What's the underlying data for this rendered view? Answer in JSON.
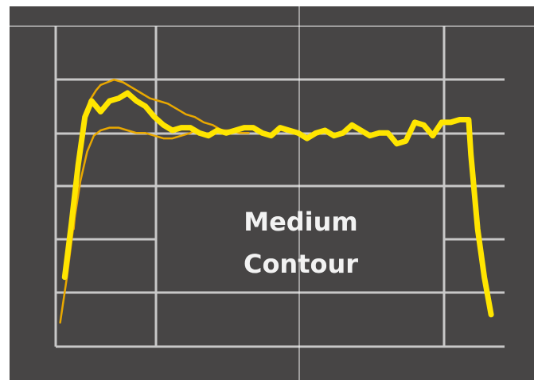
{
  "chart_data": {
    "type": "line",
    "title": "",
    "xlabel": "",
    "ylabel": "",
    "xlim": [
      0,
      10
    ],
    "ylim": [
      0,
      6
    ],
    "grid": true,
    "legend": "none",
    "annotations": [
      "Medium",
      "Contour"
    ],
    "colors": {
      "background": "#474545",
      "grid": "#c8c8c8",
      "divider": "#f5f5f5",
      "main": "#ffe500",
      "envelope": "#e9a800"
    },
    "series": [
      {
        "style": "thick",
        "x": [
          0.2,
          0.35,
          0.5,
          0.65,
          0.8,
          1.0,
          1.2,
          1.4,
          1.6,
          1.8,
          2.0,
          2.2,
          2.4,
          2.6,
          2.8,
          3.0,
          3.2,
          3.4,
          3.6,
          3.8,
          4.0,
          4.2,
          4.4,
          4.6,
          4.8,
          5.0,
          5.2,
          5.4,
          5.6,
          5.8,
          6.0,
          6.2,
          6.4,
          6.6,
          6.8,
          7.0,
          7.2,
          7.4,
          7.6,
          7.8,
          8.0,
          8.2,
          8.4,
          8.6,
          8.8,
          9.0,
          9.2,
          9.25,
          9.4,
          9.55,
          9.7
        ],
        "y": [
          1.3,
          2.3,
          3.4,
          4.3,
          4.6,
          4.4,
          4.6,
          4.65,
          4.75,
          4.6,
          4.5,
          4.3,
          4.15,
          4.05,
          4.1,
          4.1,
          4.0,
          3.95,
          4.05,
          4.0,
          4.05,
          4.1,
          4.1,
          4.0,
          3.95,
          4.1,
          4.05,
          4.0,
          3.9,
          4.0,
          4.05,
          3.95,
          4.0,
          4.15,
          4.05,
          3.95,
          4.0,
          4.0,
          3.8,
          3.85,
          4.2,
          4.15,
          3.95,
          4.2,
          4.2,
          4.25,
          4.25,
          3.6,
          2.2,
          1.3,
          0.6
        ]
      },
      {
        "style": "thin-upper",
        "x": [
          0.4,
          0.5,
          0.6,
          0.75,
          0.9,
          1.0,
          1.15,
          1.3,
          1.5,
          1.7,
          1.9,
          2.1,
          2.3,
          2.5,
          2.7,
          2.9,
          3.1,
          3.3,
          3.5,
          3.7,
          3.9,
          4.1,
          4.3
        ],
        "y": [
          2.2,
          3.2,
          4.0,
          4.6,
          4.8,
          4.9,
          4.95,
          5.0,
          4.95,
          4.85,
          4.75,
          4.65,
          4.6,
          4.55,
          4.45,
          4.35,
          4.3,
          4.2,
          4.15,
          4.05,
          4.05,
          4.0,
          4.0
        ]
      },
      {
        "style": "thin-lower",
        "x": [
          0.1,
          0.25,
          0.4,
          0.55,
          0.7,
          0.85,
          1.0,
          1.2,
          1.4,
          1.6,
          1.8,
          2.0,
          2.2,
          2.4,
          2.6,
          2.8,
          3.0,
          3.1
        ],
        "y": [
          0.45,
          1.3,
          2.3,
          3.1,
          3.65,
          3.95,
          4.05,
          4.1,
          4.1,
          4.05,
          4.0,
          4.0,
          3.95,
          3.9,
          3.9,
          3.95,
          4.0,
          4.05
        ]
      }
    ]
  }
}
